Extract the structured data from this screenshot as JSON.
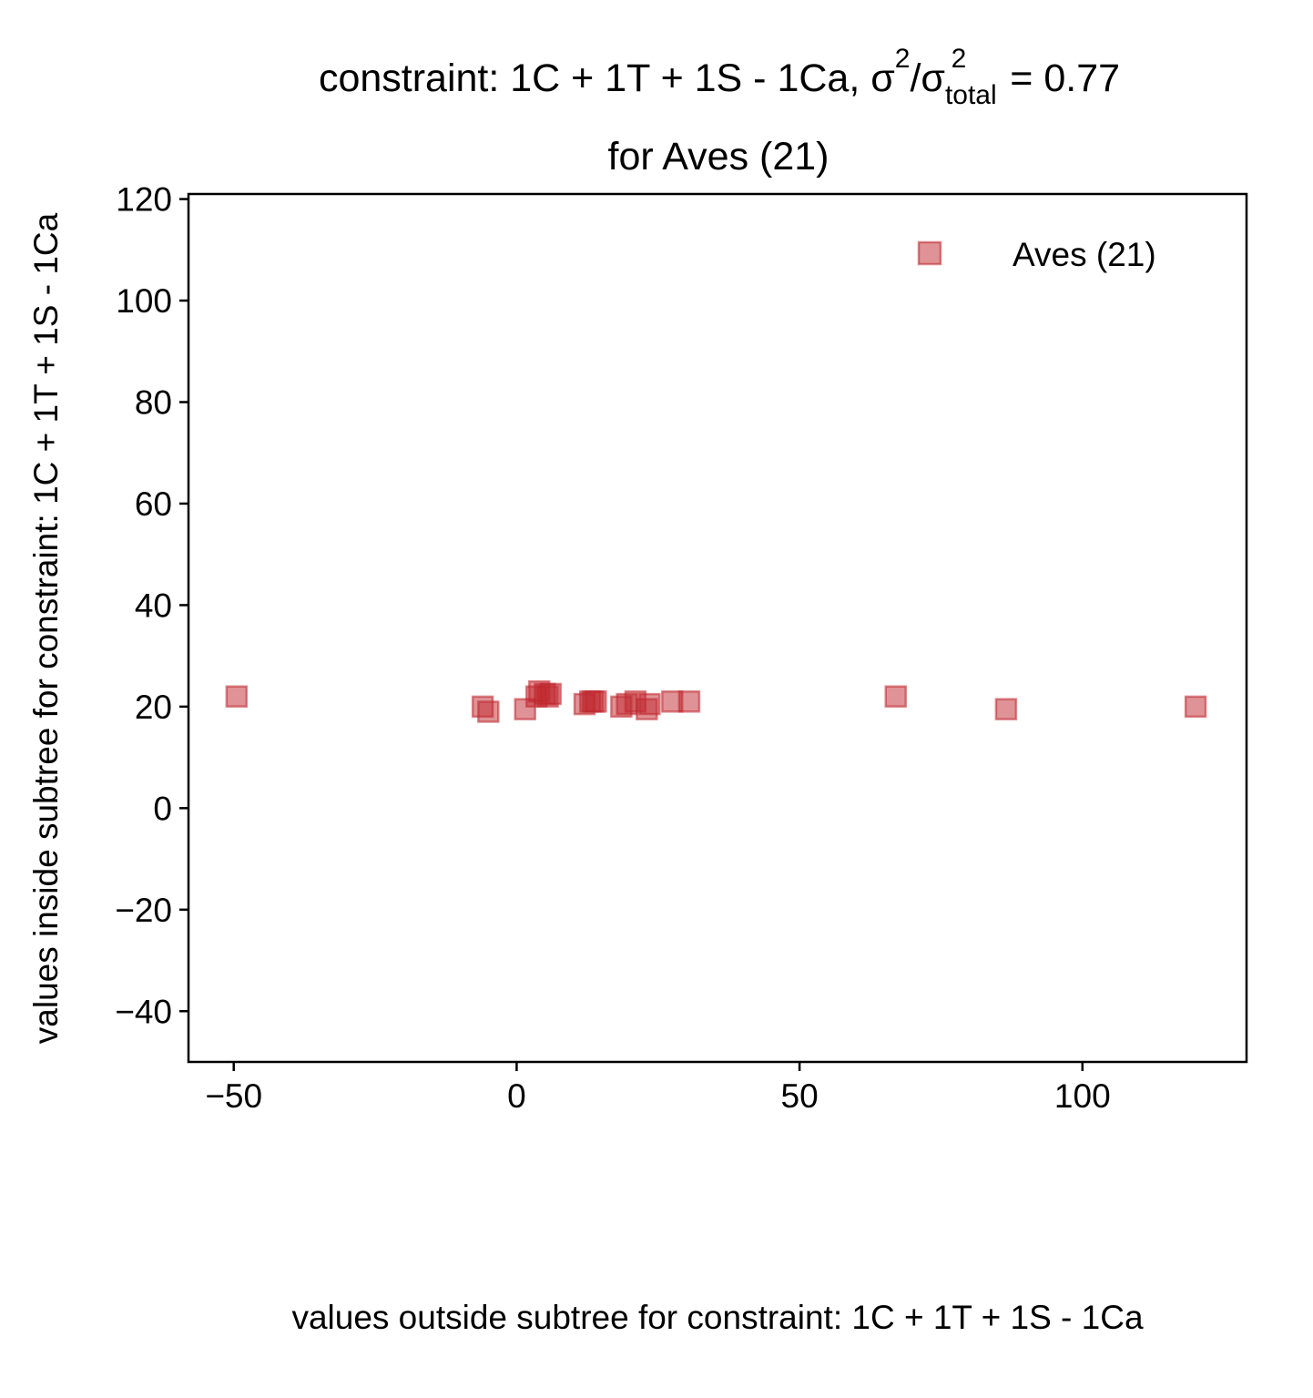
{
  "chart_data": {
    "type": "scatter",
    "title": {
      "line1_prefix": "constraint: 1C + 1T + 1S - 1Ca, σ",
      "sup1": "2",
      "slash": "/σ",
      "sub": "total",
      "sup2": "2",
      "line1_suffix": " =  0.77",
      "line2": "for Aves (21)"
    },
    "xlabel": "values outside subtree for constraint: 1C + 1T + 1S - 1Ca",
    "ylabel": "values inside subtree for constraint: 1C + 1T + 1S - 1Ca",
    "xlim": [
      -58,
      129
    ],
    "ylim": [
      -50,
      121
    ],
    "xticks": [
      -50,
      0,
      50,
      100
    ],
    "xtick_labels": [
      "−50",
      "0",
      "50",
      "100"
    ],
    "yticks": [
      -40,
      -20,
      0,
      20,
      40,
      60,
      80,
      100,
      120
    ],
    "ytick_labels": [
      "−40",
      "−20",
      "0",
      "20",
      "40",
      "60",
      "80",
      "100",
      "120"
    ],
    "grid": false,
    "legend_position": "top-right",
    "series": [
      {
        "name": "Aves (21)",
        "marker": "square",
        "color": "#c0272d",
        "x": [
          -49.5,
          -6,
          -5,
          1.5,
          3.5,
          4,
          5,
          5.5,
          6,
          12,
          13,
          13.5,
          14,
          18.5,
          19.5,
          21,
          23,
          23.5,
          27.5,
          30.5,
          67,
          86.5,
          120
        ],
        "y": [
          22,
          20,
          19,
          19.5,
          22,
          23,
          22.5,
          22,
          22.5,
          20.5,
          21,
          21,
          21,
          20,
          20.5,
          21,
          19.5,
          20.5,
          21,
          21,
          22,
          19.5,
          20
        ]
      }
    ]
  }
}
